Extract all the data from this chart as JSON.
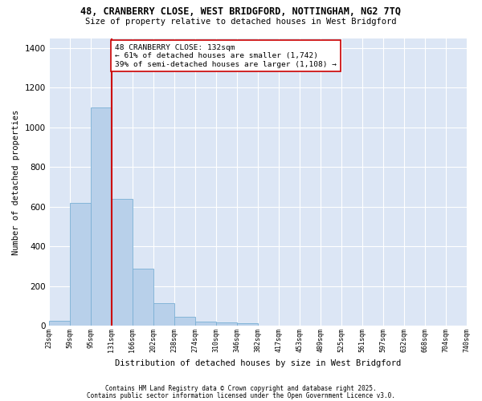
{
  "title1": "48, CRANBERRY CLOSE, WEST BRIDGFORD, NOTTINGHAM, NG2 7TQ",
  "title2": "Size of property relative to detached houses in West Bridgford",
  "xlabel": "Distribution of detached houses by size in West Bridgford",
  "ylabel": "Number of detached properties",
  "bar_values": [
    25,
    620,
    1100,
    640,
    290,
    115,
    48,
    20,
    18,
    12,
    0,
    0,
    0,
    0,
    0,
    0,
    0,
    0,
    0,
    0
  ],
  "bin_labels": [
    "23sqm",
    "59sqm",
    "95sqm",
    "131sqm",
    "166sqm",
    "202sqm",
    "238sqm",
    "274sqm",
    "310sqm",
    "346sqm",
    "382sqm",
    "417sqm",
    "453sqm",
    "489sqm",
    "525sqm",
    "561sqm",
    "597sqm",
    "632sqm",
    "668sqm",
    "704sqm",
    "740sqm"
  ],
  "bar_color": "#b8d0ea",
  "bar_edge_color": "#7aafd4",
  "bg_color": "#dce6f5",
  "fig_bg_color": "#ffffff",
  "grid_color": "#ffffff",
  "annotation_text": "48 CRANBERRY CLOSE: 132sqm\n← 61% of detached houses are smaller (1,742)\n39% of semi-detached houses are larger (1,108) →",
  "vline_x": 3.0,
  "vline_color": "#cc0000",
  "annotation_box_facecolor": "#ffffff",
  "annotation_border_color": "#cc0000",
  "ylim": [
    0,
    1450
  ],
  "yticks": [
    0,
    200,
    400,
    600,
    800,
    1000,
    1200,
    1400
  ],
  "n_bars": 20,
  "footnote1": "Contains HM Land Registry data © Crown copyright and database right 2025.",
  "footnote2": "Contains public sector information licensed under the Open Government Licence v3.0."
}
